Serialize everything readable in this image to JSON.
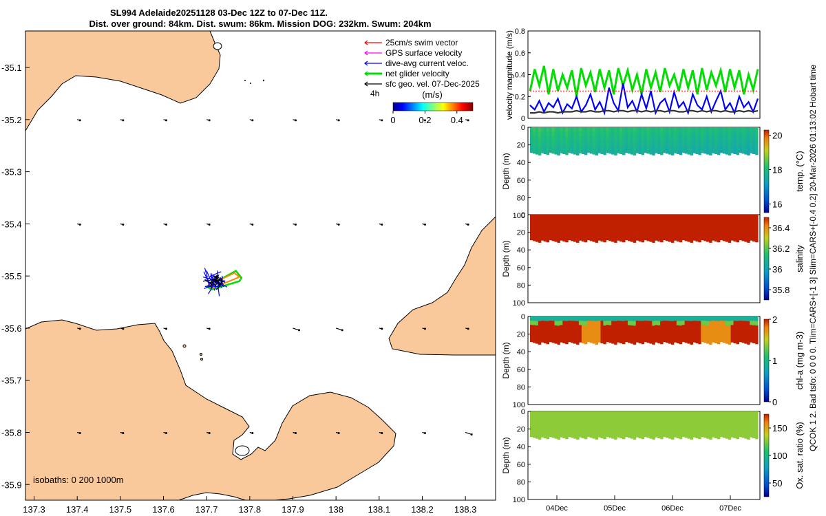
{
  "header": {
    "title_line1": "SL994 Adelaide20251128 03-Dec 12Z to 07-Dec 11Z.",
    "title_line2": "Dist. over ground: 84km. Dist. swum: 86km. Mission DOG: 232km. Swum: 204km"
  },
  "side_note": "QCOK 1 2. Bad tsfo: 0 0 0 0. Tlim=CARS+[-1 3] Slim=CARS+[-0.4 0.2] 20-Mar-2026 01:13:02 Hobart time",
  "colors": {
    "land": "#f9c99c",
    "swim": "#ff0000",
    "gps": "#ff00ff",
    "dive_avg": "#0000ff",
    "net_glider": "#00dd00",
    "sfc_geo": "#000000",
    "speed_dark": "#333333"
  },
  "chart_data": [
    {
      "type": "map",
      "title": "SL994 Adelaide20251128 track map",
      "x_ticks": [
        "137.3",
        "137.4",
        "137.5",
        "137.6",
        "137.7",
        "137.8",
        "137.9",
        "138",
        "138.1",
        "138.2",
        "138.3"
      ],
      "y_ticks": [
        "-35.1",
        "-35.2",
        "-35.3",
        "-35.4",
        "-35.5",
        "-35.6",
        "-35.7",
        "-35.8",
        "-35.9"
      ],
      "xlim": [
        137.28,
        138.37
      ],
      "ylim": [
        -35.93,
        -35.03
      ],
      "legend": [
        {
          "label": "25cm/s swim vector",
          "color": "#ff0000"
        },
        {
          "label": "GPS surface velocity",
          "color": "#ff00ff"
        },
        {
          "label": "dive-avg current veloc.",
          "color": "#0000ff"
        },
        {
          "label": "net glider velocity",
          "color": "#00dd00"
        },
        {
          "label": "sfc geo. vel. 07-Dec-2025",
          "color": "#000000"
        }
      ],
      "colorbar": {
        "label": "(m/s)",
        "ticks": [
          "0",
          "0.2",
          "0.4"
        ],
        "range": [
          0,
          0.5
        ]
      },
      "timestamp_label": "4h",
      "isobaths": "isobaths: 0   200  1000m",
      "glider_location": {
        "lon": 137.72,
        "lat": -35.51
      }
    },
    {
      "type": "line",
      "ylabel": "velocity magnitude (m/s)",
      "yticks": [
        "0",
        "0.2",
        "0.4",
        "0.6",
        "0.8"
      ],
      "ylim": [
        0,
        0.8
      ],
      "xlim": [
        0,
        4
      ],
      "series": [
        {
          "name": "net glider velocity",
          "color": "#00dd00",
          "values": [
            0.25,
            0.45,
            0.3,
            0.48,
            0.22,
            0.45,
            0.25,
            0.4,
            0.28,
            0.44,
            0.2,
            0.46,
            0.3,
            0.42,
            0.24,
            0.45,
            0.28,
            0.44,
            0.22,
            0.46,
            0.3,
            0.44,
            0.26,
            0.4,
            0.22,
            0.45,
            0.28,
            0.42,
            0.24,
            0.46,
            0.3,
            0.4,
            0.25,
            0.45,
            0.28,
            0.44,
            0.22,
            0.46,
            0.26,
            0.42,
            0.3,
            0.44,
            0.24,
            0.45,
            0.28,
            0.44,
            0.22,
            0.4,
            0.26,
            0.45
          ]
        },
        {
          "name": "dive-avg current veloc.",
          "color": "#0000ff",
          "values": [
            0.12,
            0.08,
            0.16,
            0.06,
            0.14,
            0.1,
            0.18,
            0.05,
            0.13,
            0.09,
            0.2,
            0.06,
            0.12,
            0.22,
            0.08,
            0.15,
            0.05,
            0.28,
            0.14,
            0.07,
            0.32,
            0.1,
            0.16,
            0.06,
            0.22,
            0.09,
            0.25,
            0.05,
            0.14,
            0.18,
            0.06,
            0.24,
            0.1,
            0.15,
            0.05,
            0.22,
            0.12,
            0.08,
            0.2,
            0.06,
            0.16,
            0.25,
            0.08,
            0.14,
            0.05,
            0.2,
            0.1,
            0.15,
            0.06,
            0.18
          ]
        },
        {
          "name": "25cm/s swim vector",
          "color": "#ff0000",
          "values": [
            0.25,
            0.25,
            0.25,
            0.25,
            0.25,
            0.25,
            0.25,
            0.25,
            0.25,
            0.25,
            0.25,
            0.25,
            0.25,
            0.25,
            0.25,
            0.25,
            0.25,
            0.25,
            0.25,
            0.25,
            0.25,
            0.25,
            0.25,
            0.25,
            0.25,
            0.25,
            0.25,
            0.25,
            0.25,
            0.25,
            0.25,
            0.25,
            0.25,
            0.25,
            0.25,
            0.25,
            0.25,
            0.25,
            0.25,
            0.25,
            0.25,
            0.25,
            0.25,
            0.25,
            0.25,
            0.25,
            0.25,
            0.25,
            0.25,
            0.25
          ]
        },
        {
          "name": "sfc geo. vel.",
          "color": "#333333",
          "values": [
            0.05,
            0.05,
            0.06,
            0.05,
            0.06,
            0.06,
            0.05,
            0.06,
            0.06,
            0.06,
            0.07,
            0.06,
            0.06,
            0.07,
            0.06,
            0.06,
            0.07,
            0.07,
            0.06,
            0.07,
            0.07,
            0.06,
            0.07,
            0.07,
            0.06,
            0.07,
            0.06,
            0.07,
            0.07,
            0.06,
            0.07,
            0.07,
            0.06,
            0.06,
            0.07,
            0.07,
            0.06,
            0.07,
            0.06,
            0.07,
            0.07,
            0.06,
            0.07,
            0.06,
            0.06,
            0.07,
            0.06,
            0.07,
            0.06,
            0.07
          ]
        }
      ]
    },
    {
      "type": "heatmap",
      "ylabel": "Depth (m)",
      "yticks": [
        "0",
        "20",
        "40",
        "60",
        "80",
        "100"
      ],
      "ylim": [
        0,
        100
      ],
      "colorbar": {
        "label": "temp. (°C)",
        "ticks": [
          "20",
          "18",
          "16"
        ],
        "range": [
          15.5,
          20.3
        ]
      },
      "depth_max": 30,
      "surface_value": 18.2,
      "bottom_value": 17.5
    },
    {
      "type": "heatmap",
      "ylabel": "Depth (m)",
      "yticks": [
        "0",
        "20",
        "40",
        "60",
        "80",
        "100"
      ],
      "ylim": [
        0,
        100
      ],
      "colorbar": {
        "label": "salinity",
        "ticks": [
          "36.4",
          "36.2",
          "36",
          "35.8"
        ],
        "range": [
          35.7,
          36.5
        ]
      },
      "depth_max": 30,
      "surface_value": 36.5,
      "bottom_value": 36.5
    },
    {
      "type": "heatmap",
      "ylabel": "Depth (m)",
      "yticks": [
        "0",
        "20",
        "40",
        "60",
        "80",
        "100"
      ],
      "ylim": [
        0,
        100
      ],
      "colorbar": {
        "label": "chl-a (mg m-3)",
        "ticks": [
          "2",
          "1",
          "0"
        ],
        "range": [
          0,
          2
        ]
      },
      "depth_max": 30,
      "surface_value": 0.9,
      "bottom_value": 2.0
    },
    {
      "type": "heatmap",
      "ylabel": "Depth (m)",
      "yticks": [
        "0",
        "20",
        "40",
        "60",
        "80",
        "100"
      ],
      "ylim": [
        0,
        100
      ],
      "colorbar": {
        "label": "Ox. sat. ratio (%)",
        "ticks": [
          "150",
          "100",
          "50"
        ],
        "range": [
          25,
          175
        ]
      },
      "depth_max": 30,
      "surface_value": 128,
      "bottom_value": 128
    }
  ],
  "time_axis": {
    "ticks": [
      "04Dec",
      "05Dec",
      "06Dec",
      "07Dec"
    ]
  }
}
